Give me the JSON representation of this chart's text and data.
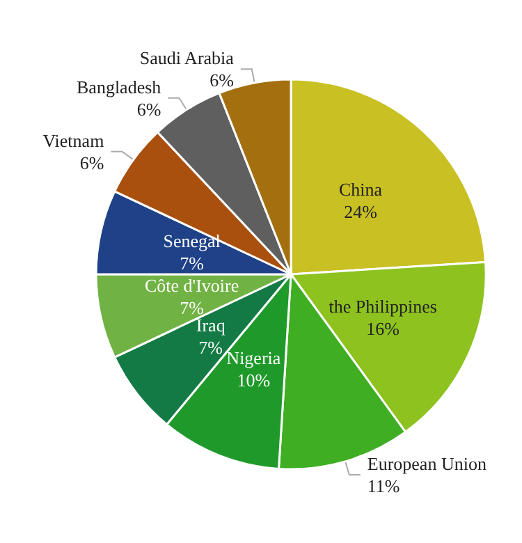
{
  "chart_data": {
    "type": "pie",
    "categories": [
      "China",
      "the Philippines",
      "European Union",
      "Nigeria",
      "Iraq",
      "Côte d'Ivoire",
      "Senegal",
      "Vietnam",
      "Bangladesh",
      "Saudi Arabia"
    ],
    "values": [
      24,
      16,
      11,
      10,
      7,
      7,
      7,
      6,
      6,
      6
    ],
    "value_labels": [
      "24%",
      "16%",
      "11%",
      "10%",
      "7%",
      "7%",
      "7%",
      "6%",
      "6%",
      "6%"
    ],
    "colors": [
      "#c9c023",
      "#8dc21f",
      "#3fae22",
      "#1f9a2a",
      "#137a45",
      "#71b244",
      "#1f4187",
      "#a9500f",
      "#5f5f5f",
      "#a4700f"
    ],
    "legend": false
  }
}
